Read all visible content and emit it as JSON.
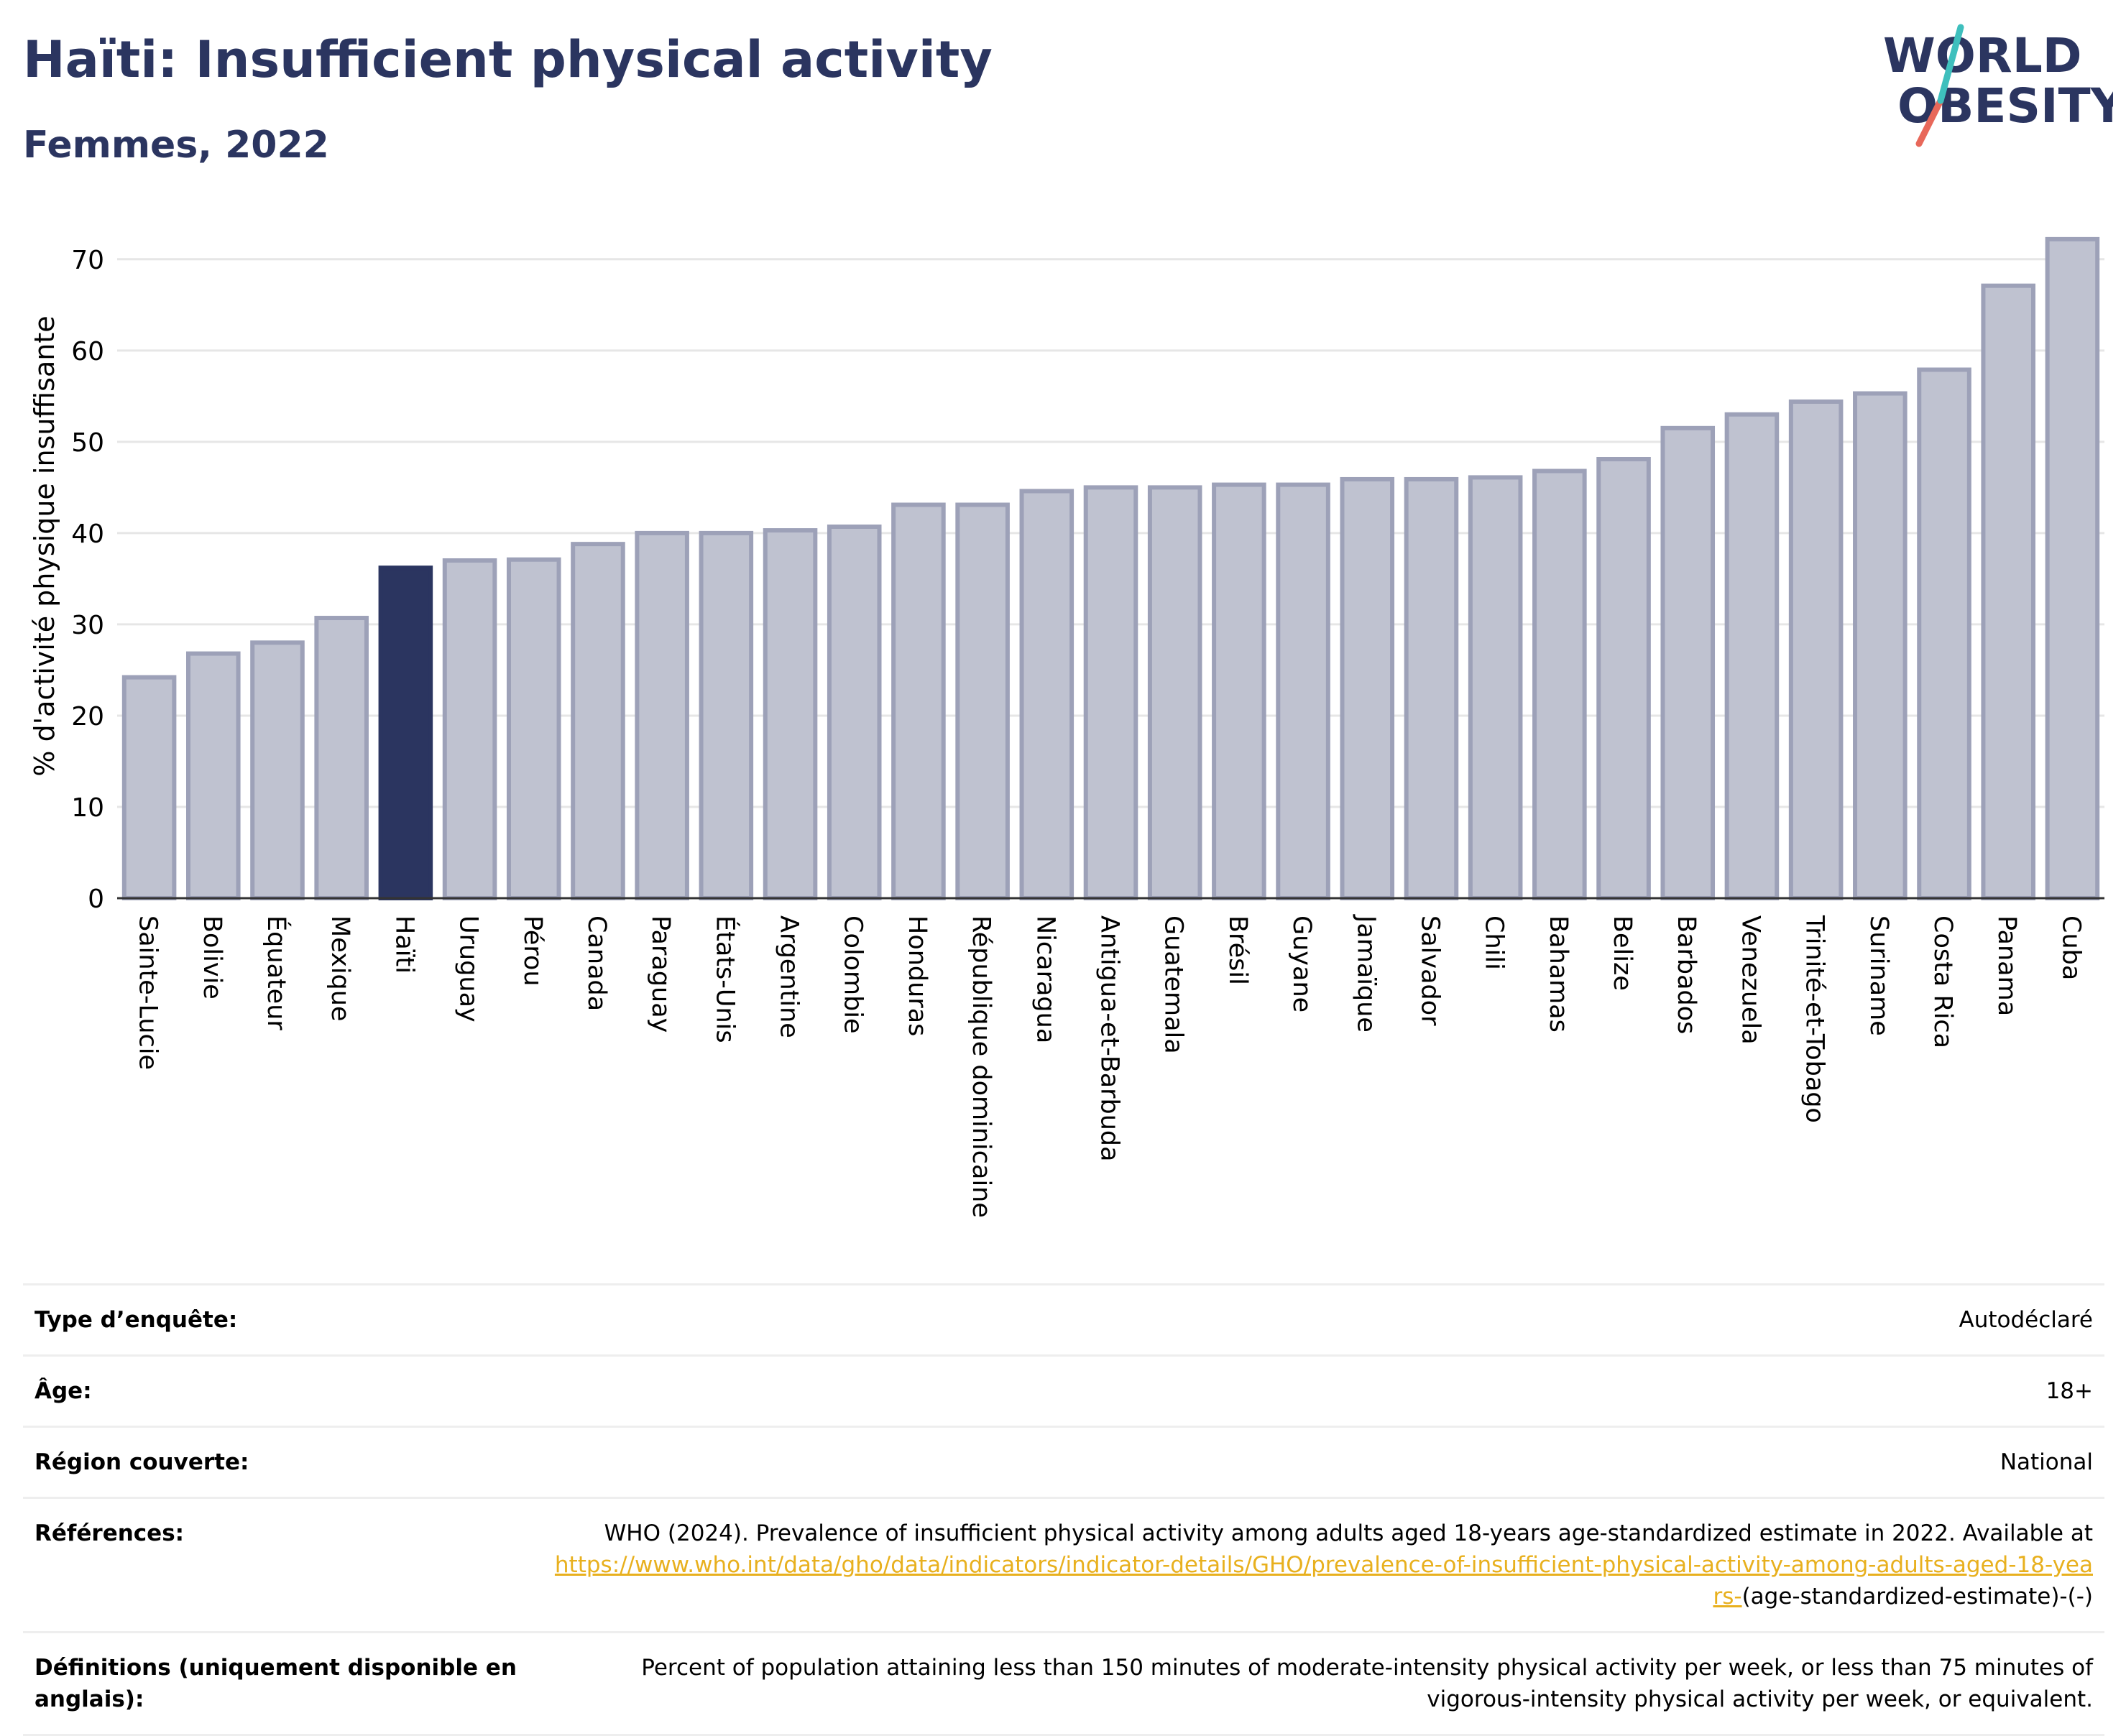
{
  "header": {
    "title": "Haïti: Insufficient physical activity",
    "subtitle": "Femmes, 2022"
  },
  "logo": {
    "line1": "WORLD",
    "line2": "OBESITY"
  },
  "colors": {
    "highlight": "#2b3560",
    "bar": "#bfc2d0",
    "bar_border": "#9da1b8",
    "title": "#2b3560"
  },
  "chart_data": {
    "type": "bar",
    "ylabel": "% d'activité physique insuffisante",
    "ylim": [
      0,
      74
    ],
    "yticks": [
      0,
      10,
      20,
      30,
      40,
      50,
      60,
      70
    ],
    "grid": true,
    "highlight": "Haïti",
    "categories": [
      "Sainte-Lucie",
      "Bolivie",
      "Équateur",
      "Mexique",
      "Haïti",
      "Uruguay",
      "Pérou",
      "Canada",
      "Paraguay",
      "États-Unis",
      "Argentine",
      "Colombie",
      "Honduras",
      "République dominicaine",
      "Nicaragua",
      "Antigua-et-Barbuda",
      "Guatemala",
      "Brésil",
      "Guyane",
      "Jamaïque",
      "Salvador",
      "Chili",
      "Bahamas",
      "Belize",
      "Barbados",
      "Venezuela",
      "Trinité-et-Tobago",
      "Suriname",
      "Costa Rica",
      "Panama",
      "Cuba"
    ],
    "values": [
      24.2,
      26.8,
      28.0,
      30.7,
      36.2,
      37.0,
      37.1,
      38.8,
      40.0,
      40.0,
      40.3,
      40.7,
      43.1,
      43.1,
      44.6,
      45.0,
      45.0,
      45.3,
      45.3,
      45.9,
      45.9,
      46.1,
      46.8,
      48.1,
      51.5,
      53.0,
      54.4,
      55.3,
      57.9,
      67.1,
      72.2
    ]
  },
  "meta": {
    "survey_type": {
      "label": "Type d’enquête:",
      "value": "Autodéclaré"
    },
    "age": {
      "label": "Âge:",
      "value": "18+"
    },
    "region": {
      "label": "Région couverte:",
      "value": "National"
    },
    "references": {
      "label": "Références:",
      "text": "WHO (2024). Prevalence of insufficient physical activity among adults aged 18-years age-standardized estimate in 2022. Available at",
      "link": "https://www.who.int/data/gho/data/indicators/indicator-details/GHO/prevalence-of-insufficient-physical-activity-among-adults-aged-18-years-",
      "suffix": "(age-standardized-estimate)-(-)"
    },
    "definitions": {
      "label": "Définitions (uniquement disponible en anglais):",
      "value": "Percent of population attaining less than 150 minutes of moderate-intensity physical activity per week, or less than 75 minutes of vigorous-intensity physical activity per week, or equivalent."
    }
  }
}
